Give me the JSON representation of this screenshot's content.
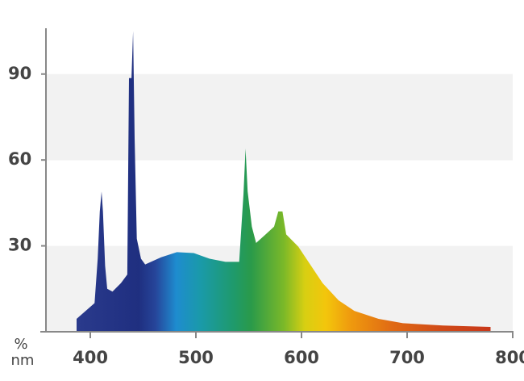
{
  "chart_data": {
    "type": "area",
    "y_label": "%",
    "x_label": "nm",
    "x": [
      387,
      404,
      407,
      409,
      410.7,
      412,
      414,
      416,
      421,
      429,
      435,
      436.6,
      439,
      440.5,
      442,
      444,
      448,
      452,
      467,
      482,
      498,
      513,
      528,
      541,
      545,
      547,
      549,
      553,
      557,
      566,
      574,
      578,
      582,
      585.5,
      597,
      604.6,
      620,
      635,
      650,
      673,
      696,
      734,
      779
    ],
    "values": [
      4.5,
      10,
      25.5,
      42,
      49,
      42,
      23,
      15,
      14,
      17,
      20,
      88.6,
      88.6,
      105,
      67.6,
      32.5,
      25.5,
      23.5,
      26,
      27.8,
      27.5,
      25.5,
      24.4,
      24.4,
      48,
      64,
      49,
      36.7,
      31,
      34,
      36.7,
      42,
      42,
      34,
      29.7,
      25.5,
      17,
      11,
      7.3,
      4.5,
      3,
      2.2,
      1.7
    ],
    "xlim": [
      358,
      800
    ],
    "ylim": [
      0,
      106
    ],
    "xticks": [
      400,
      500,
      600,
      700,
      800
    ],
    "yticks": [
      30,
      60,
      90
    ],
    "banded_grid": true
  }
}
